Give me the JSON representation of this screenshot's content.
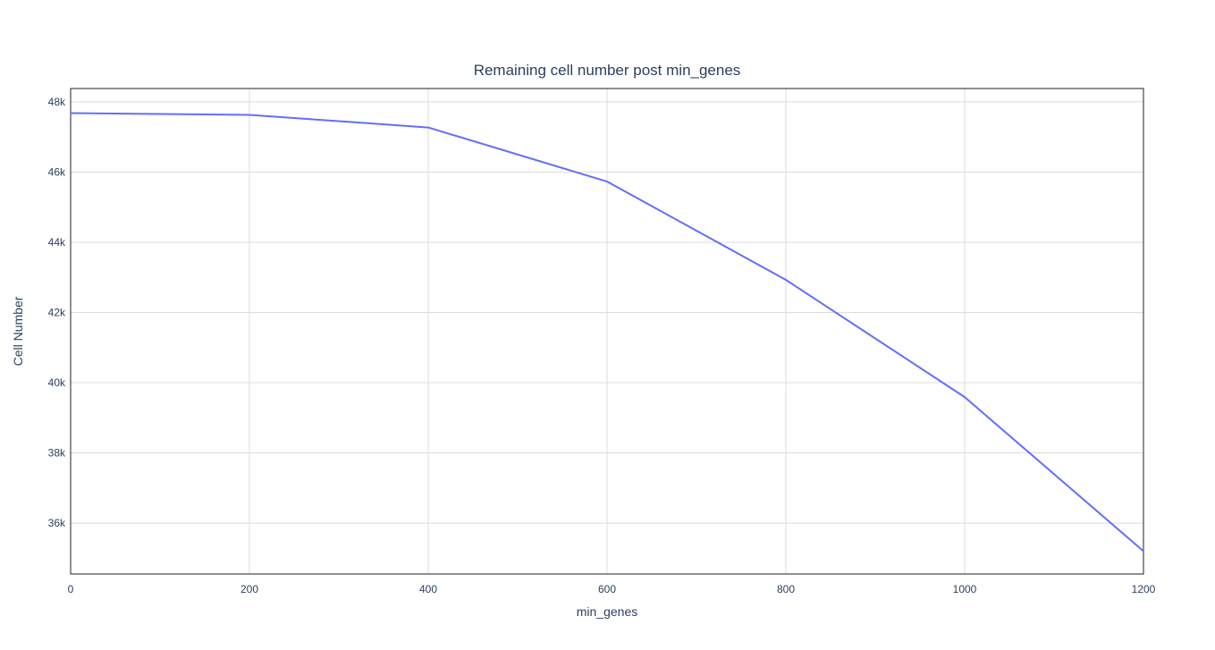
{
  "chart_data": {
    "type": "line",
    "title": "Remaining cell number post min_genes",
    "xlabel": "min_genes",
    "ylabel": "Cell Number",
    "x": [
      0,
      200,
      400,
      600,
      800,
      1000,
      1200
    ],
    "series": [
      {
        "values": [
          47680,
          47630,
          47270,
          45730,
          42930,
          39590,
          35200
        ]
      }
    ],
    "xlim": [
      0,
      1200
    ],
    "ylim": [
      34550,
      48380
    ],
    "x_ticks": [
      0,
      200,
      400,
      600,
      800,
      1000,
      1200
    ],
    "x_tick_labels": [
      "0",
      "200",
      "400",
      "600",
      "800",
      "1000",
      "1200"
    ],
    "y_ticks": [
      36000,
      38000,
      40000,
      42000,
      44000,
      46000,
      48000
    ],
    "y_tick_labels": [
      "36k",
      "38k",
      "40k",
      "42k",
      "44k",
      "46k",
      "48k"
    ],
    "grid": true,
    "line_color": "#636efa",
    "grid_color": "#dcdcdc",
    "text_color": "#2a3f5f"
  }
}
